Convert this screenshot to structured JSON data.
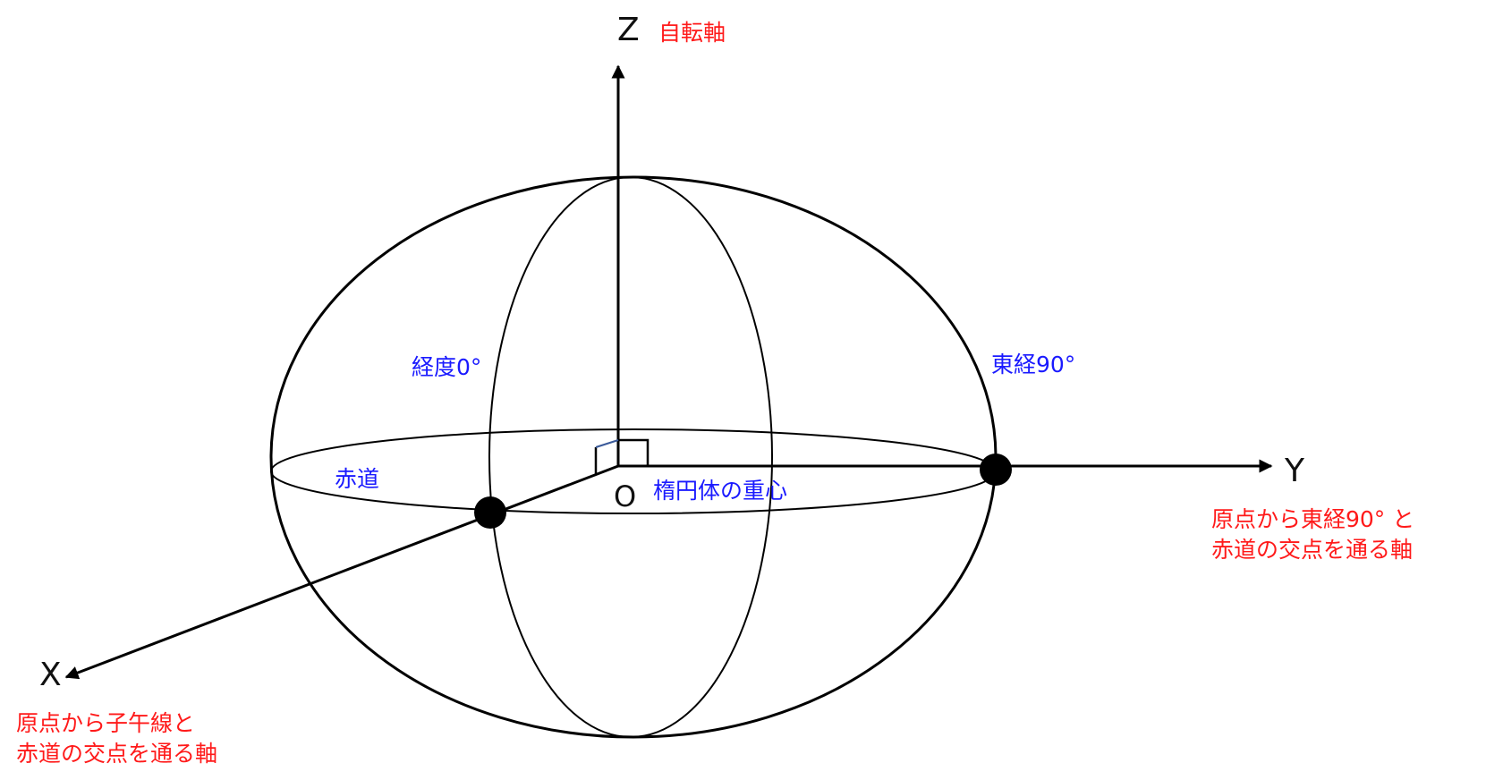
{
  "colors": {
    "annotation_red": "#ff1a1a",
    "label_blue": "#1a1aff",
    "line": "#000000",
    "right_angle_blue": "#3a5a9a"
  },
  "axes": {
    "z": {
      "letter": "Z",
      "note": "自転軸"
    },
    "y": {
      "letter": "Y",
      "note_lines": [
        "原点から東経90° と",
        "赤道の交点を通る軸"
      ]
    },
    "x": {
      "letter": "X",
      "note_lines": [
        "原点から子午線と",
        "赤道の交点を通る軸"
      ]
    }
  },
  "labels": {
    "meridian_0": "経度0°",
    "east_90": "東経90°",
    "equator": "赤道",
    "origin": "O",
    "centroid": "楕円体の重心"
  }
}
